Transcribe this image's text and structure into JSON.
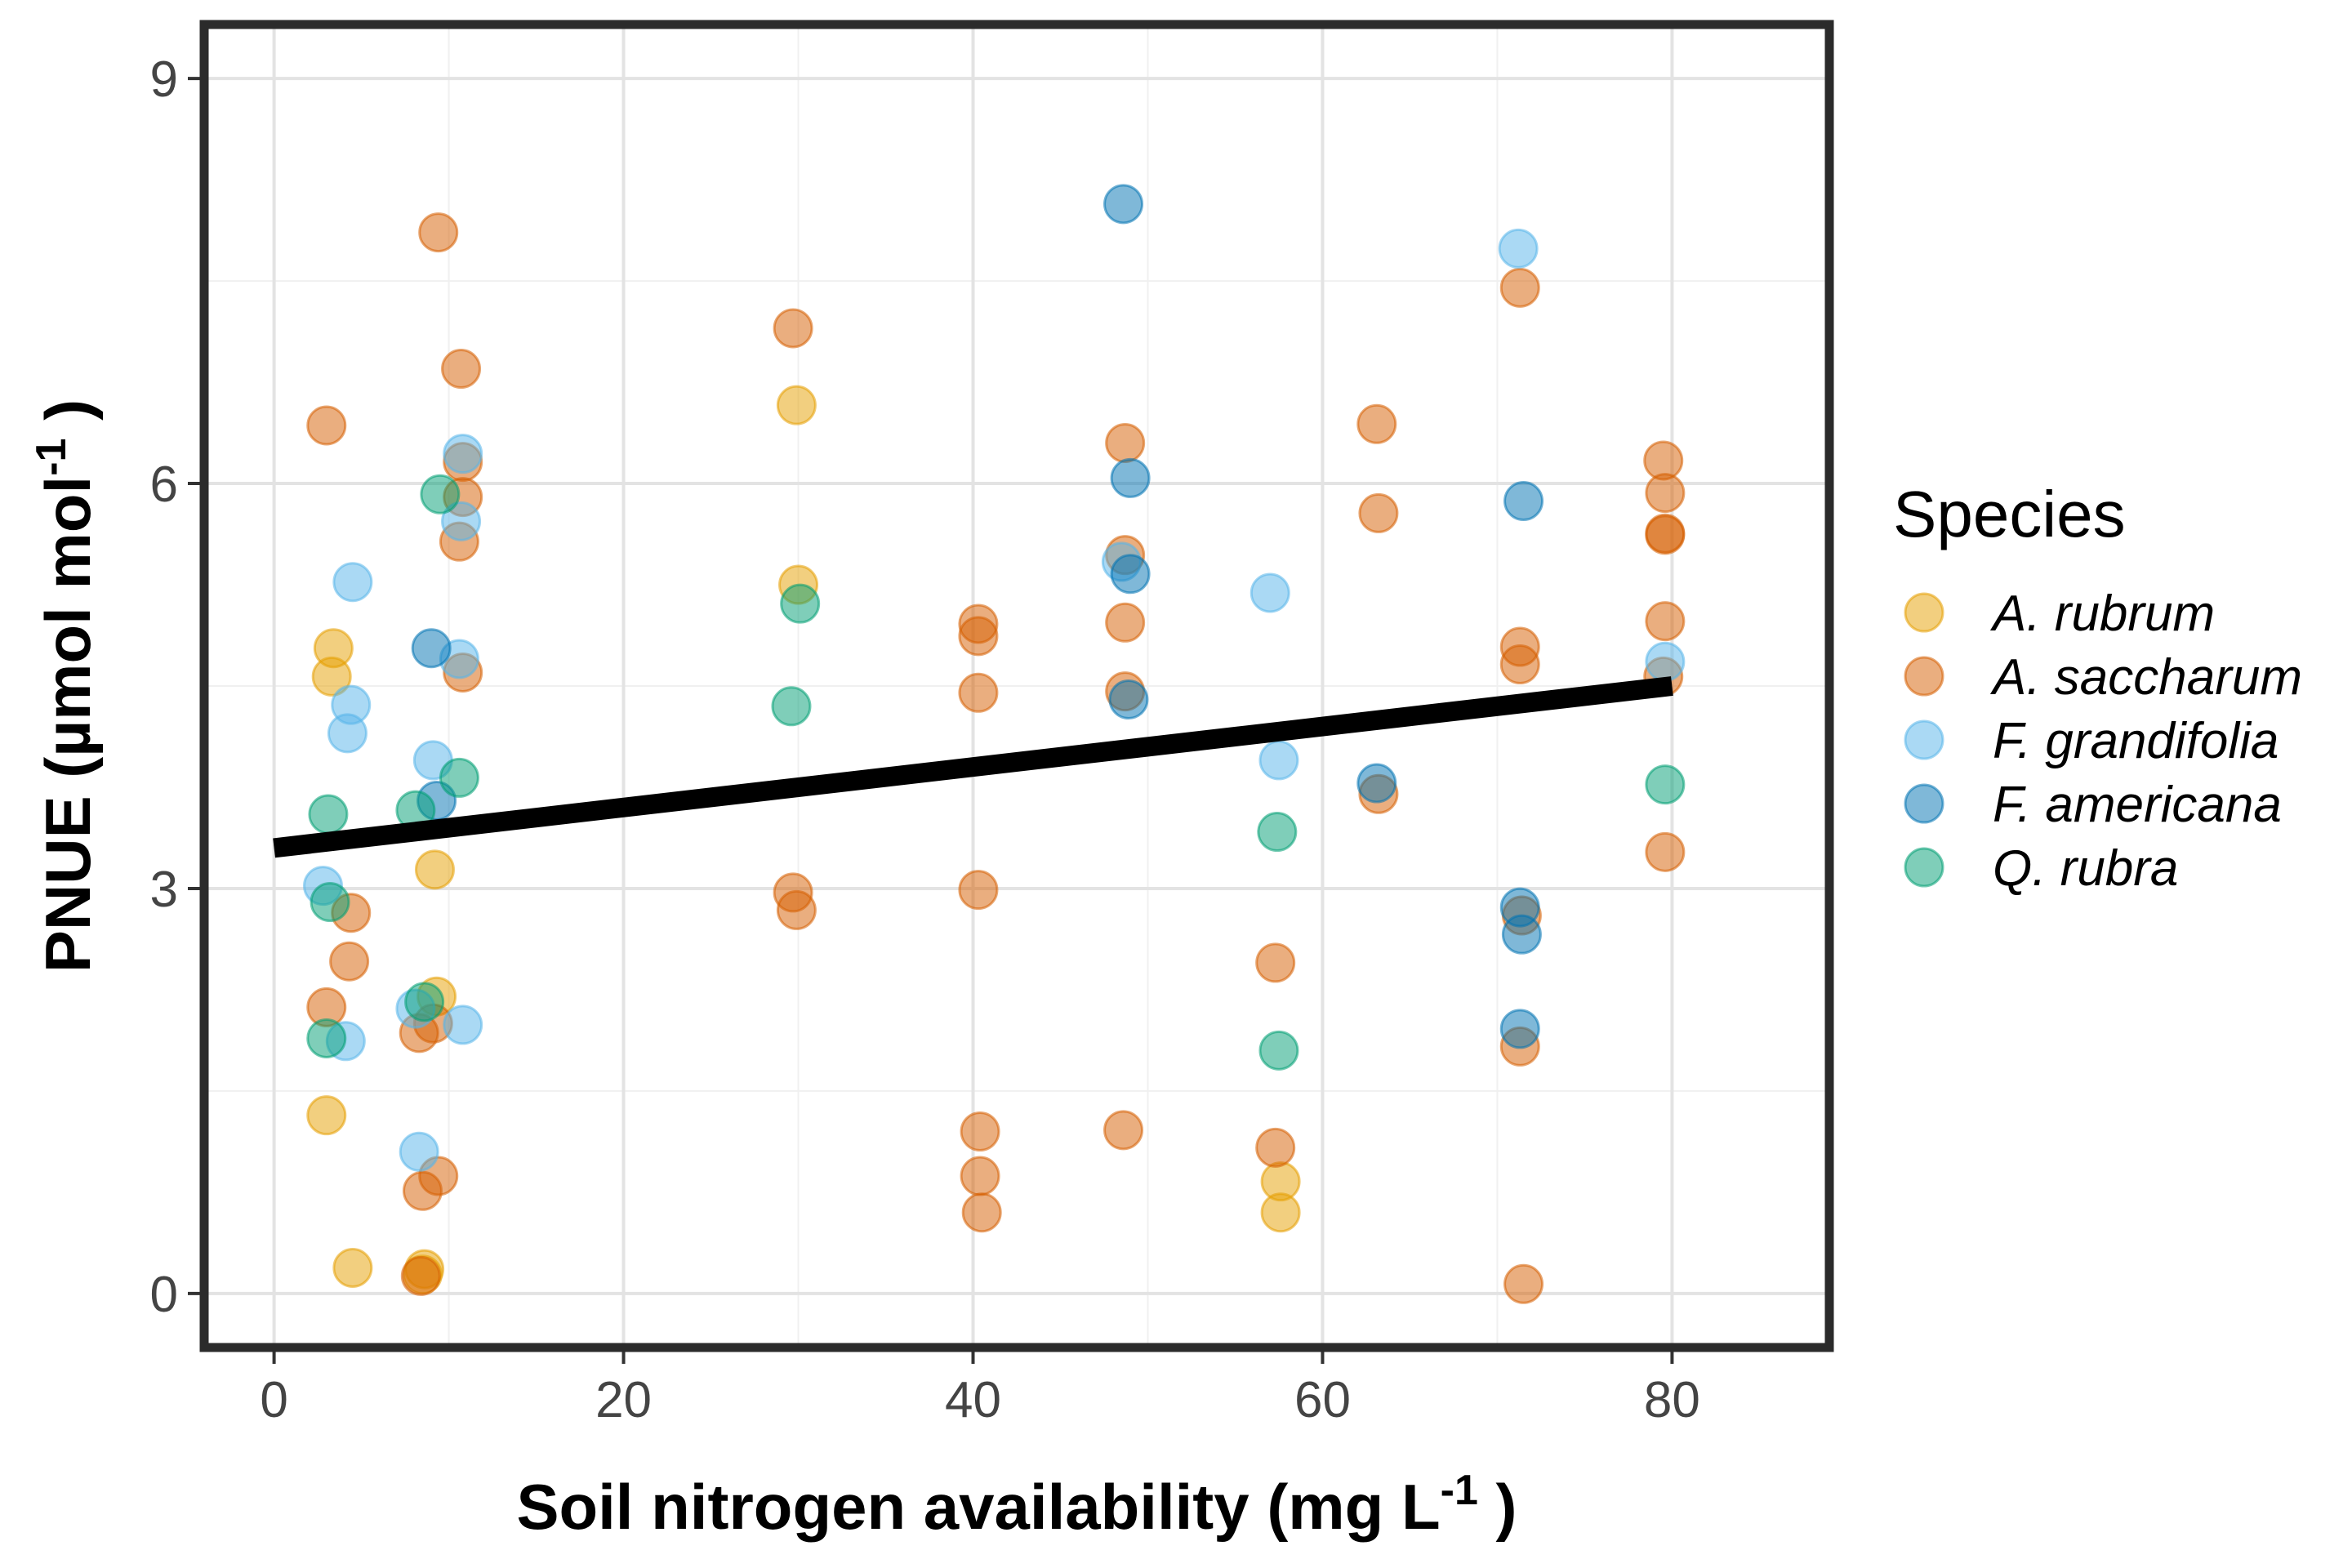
{
  "chart_data": {
    "type": "scatter",
    "title": "",
    "xlabel": "Soil nitrogen availability (mg L",
    "xlabel_sup": "-1",
    "xlabel_end": " )",
    "ylabel": "PNUE (µmol mol",
    "ylabel_sup": "-1",
    "ylabel_end": " )",
    "xlim": [
      -4,
      89
    ],
    "ylim": [
      -0.4,
      9.4
    ],
    "x_ticks": [
      0,
      20,
      40,
      60,
      80
    ],
    "y_ticks": [
      0,
      3,
      6,
      9
    ],
    "x_tick_labels": [
      "0",
      "20",
      "40",
      "60",
      "80"
    ],
    "y_tick_labels": [
      "0",
      "3",
      "6",
      "9"
    ],
    "grid": true,
    "legend": {
      "title": "Species",
      "position": "right"
    },
    "trend_line": {
      "x": [
        0,
        80
      ],
      "y": [
        3.3,
        4.5
      ],
      "color": "#000000"
    },
    "series": [
      {
        "name": "A. rubrum",
        "color": "#E69F00",
        "points": [
          [
            3.3,
            4.57
          ],
          [
            3.4,
            4.78
          ],
          [
            3.0,
            1.32
          ],
          [
            4.5,
            0.19
          ],
          [
            9.2,
            3.14
          ],
          [
            9.3,
            2.2
          ],
          [
            8.6,
            0.18
          ],
          [
            8.5,
            0.14
          ],
          [
            29.9,
            6.58
          ],
          [
            30.0,
            5.25
          ],
          [
            57.6,
            0.83
          ],
          [
            57.6,
            0.6
          ]
        ]
      },
      {
        "name": "A. saccharum",
        "color": "#D55E00",
        "points": [
          [
            3.0,
            6.43
          ],
          [
            3.0,
            2.12
          ],
          [
            4.4,
            2.82
          ],
          [
            4.3,
            2.46
          ],
          [
            8.3,
            1.93
          ],
          [
            9.1,
            2.0
          ],
          [
            8.5,
            0.76
          ],
          [
            9.4,
            0.87
          ],
          [
            8.4,
            0.13
          ],
          [
            9.4,
            7.86
          ],
          [
            10.7,
            6.85
          ],
          [
            10.8,
            6.16
          ],
          [
            10.8,
            5.9
          ],
          [
            10.6,
            5.57
          ],
          [
            10.8,
            4.6
          ],
          [
            29.7,
            7.15
          ],
          [
            29.7,
            2.97
          ],
          [
            29.9,
            2.84
          ],
          [
            40.3,
            4.96
          ],
          [
            40.3,
            4.87
          ],
          [
            40.3,
            4.45
          ],
          [
            40.3,
            2.99
          ],
          [
            40.4,
            1.2
          ],
          [
            40.4,
            0.87
          ],
          [
            40.5,
            0.6
          ],
          [
            48.7,
            6.3
          ],
          [
            48.7,
            5.47
          ],
          [
            48.7,
            4.97
          ],
          [
            48.7,
            4.46
          ],
          [
            48.6,
            1.21
          ],
          [
            57.3,
            2.45
          ],
          [
            57.3,
            1.08
          ],
          [
            63.1,
            6.44
          ],
          [
            63.2,
            5.78
          ],
          [
            63.2,
            3.7
          ],
          [
            71.3,
            7.45
          ],
          [
            71.3,
            4.79
          ],
          [
            71.3,
            4.66
          ],
          [
            71.4,
            2.8
          ],
          [
            71.3,
            1.83
          ],
          [
            71.5,
            0.07
          ],
          [
            79.5,
            6.17
          ],
          [
            79.6,
            5.93
          ],
          [
            79.6,
            5.63
          ],
          [
            79.6,
            5.62
          ],
          [
            79.6,
            4.98
          ],
          [
            79.5,
            4.57
          ],
          [
            79.6,
            3.27
          ]
        ]
      },
      {
        "name": "F. grandifolia",
        "color": "#56B4E9",
        "points": [
          [
            4.5,
            5.27
          ],
          [
            4.4,
            4.36
          ],
          [
            4.2,
            4.15
          ],
          [
            2.8,
            3.02
          ],
          [
            4.1,
            1.87
          ],
          [
            8.1,
            2.11
          ],
          [
            8.3,
            1.05
          ],
          [
            9.1,
            3.95
          ],
          [
            10.6,
            4.7
          ],
          [
            10.8,
            6.22
          ],
          [
            10.7,
            5.72
          ],
          [
            10.8,
            1.99
          ],
          [
            48.5,
            5.42
          ],
          [
            57.0,
            5.19
          ],
          [
            57.5,
            3.95
          ],
          [
            71.2,
            7.74
          ],
          [
            79.6,
            4.68
          ]
        ]
      },
      {
        "name": "F. americana",
        "color": "#0072B2",
        "points": [
          [
            9.0,
            4.78
          ],
          [
            9.3,
            3.65
          ],
          [
            48.6,
            8.07
          ],
          [
            49.0,
            6.04
          ],
          [
            49.0,
            5.33
          ],
          [
            48.9,
            4.4
          ],
          [
            63.1,
            3.78
          ],
          [
            71.5,
            5.87
          ],
          [
            71.3,
            2.86
          ],
          [
            71.4,
            2.66
          ],
          [
            71.3,
            1.96
          ]
        ]
      },
      {
        "name": "Q. rubra",
        "color": "#009E73",
        "points": [
          [
            3.1,
            3.55
          ],
          [
            3.2,
            2.9
          ],
          [
            3.0,
            1.89
          ],
          [
            8.1,
            3.58
          ],
          [
            8.6,
            2.16
          ],
          [
            9.5,
            5.92
          ],
          [
            10.6,
            3.82
          ],
          [
            29.6,
            4.35
          ],
          [
            30.1,
            5.11
          ],
          [
            57.4,
            3.42
          ],
          [
            57.5,
            1.8
          ],
          [
            79.6,
            3.77
          ]
        ]
      }
    ]
  }
}
